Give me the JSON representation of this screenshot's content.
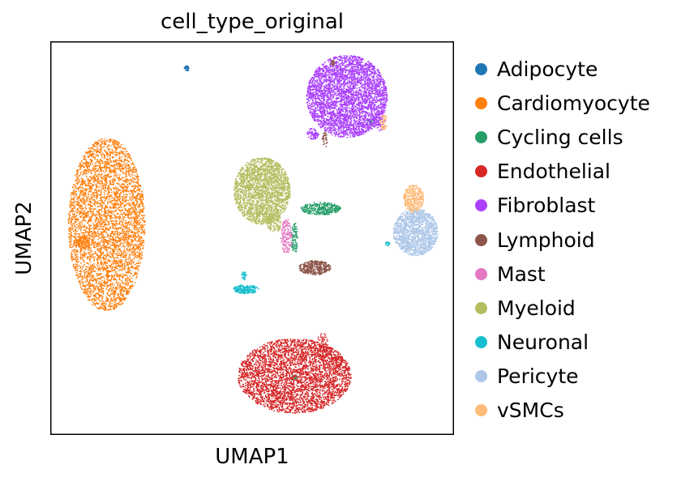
{
  "chart_data": {
    "type": "scatter",
    "title": "cell_type_original",
    "xlabel": "UMAP1",
    "ylabel": "UMAP2",
    "xticks": false,
    "yticks": false,
    "grid": false,
    "legend_placement": "right",
    "xlim": [
      0,
      100
    ],
    "ylim": [
      0,
      100
    ],
    "series": [
      {
        "name": "Adipocyte",
        "color": "#1f77b4",
        "clusters": [
          {
            "cx": 33.8,
            "cy": 93.1,
            "rx": 0.6,
            "ry": 0.7,
            "n": 40
          }
        ]
      },
      {
        "name": "Cardiomyocyte",
        "color": "#ff7f0e",
        "clusters": [
          {
            "cx": 14.0,
            "cy": 53.5,
            "rx": 9.5,
            "ry": 22.0,
            "n": 4200
          },
          {
            "cx": 7.8,
            "cy": 49.0,
            "rx": 2.0,
            "ry": 1.6,
            "n": 120
          }
        ]
      },
      {
        "name": "Cycling cells",
        "color": "#279e68",
        "clusters": [
          {
            "cx": 67.0,
            "cy": 57.5,
            "rx": 5.0,
            "ry": 1.6,
            "n": 320
          },
          {
            "cx": 60.5,
            "cy": 50.0,
            "rx": 0.8,
            "ry": 4.0,
            "n": 90
          },
          {
            "cx": 60.5,
            "cy": 14.5,
            "rx": 0.8,
            "ry": 0.7,
            "n": 30
          },
          {
            "cx": 79.5,
            "cy": 79.5,
            "rx": 0.9,
            "ry": 0.8,
            "n": 30
          }
        ]
      },
      {
        "name": "Endothelial",
        "color": "#d62728",
        "clusters": [
          {
            "cx": 60.5,
            "cy": 15.0,
            "rx": 14.0,
            "ry": 9.5,
            "n": 3600
          },
          {
            "cx": 67.5,
            "cy": 22.5,
            "rx": 1.5,
            "ry": 3.5,
            "n": 80
          },
          {
            "cx": 71.0,
            "cy": 19.0,
            "rx": 2.0,
            "ry": 1.5,
            "n": 60
          }
        ]
      },
      {
        "name": "Fibroblast",
        "color": "#aa40fc",
        "clusters": [
          {
            "cx": 73.5,
            "cy": 86.0,
            "rx": 10.0,
            "ry": 10.5,
            "n": 3600
          },
          {
            "cx": 65.0,
            "cy": 76.5,
            "rx": 1.5,
            "ry": 1.4,
            "n": 80
          },
          {
            "cx": 81.5,
            "cy": 79.5,
            "rx": 1.5,
            "ry": 2.5,
            "n": 80
          }
        ]
      },
      {
        "name": "Lymphoid",
        "color": "#8c564b",
        "clusters": [
          {
            "cx": 65.5,
            "cy": 42.5,
            "rx": 4.0,
            "ry": 1.8,
            "n": 380
          },
          {
            "cx": 68.0,
            "cy": 75.0,
            "rx": 0.7,
            "ry": 2.0,
            "n": 30
          },
          {
            "cx": 70.0,
            "cy": 94.5,
            "rx": 0.5,
            "ry": 0.8,
            "n": 20
          }
        ]
      },
      {
        "name": "Mast",
        "color": "#e377c2",
        "clusters": [
          {
            "cx": 58.5,
            "cy": 50.5,
            "rx": 1.4,
            "ry": 4.5,
            "n": 160
          }
        ]
      },
      {
        "name": "Myeloid",
        "color": "#b5bd61",
        "clusters": [
          {
            "cx": 52.5,
            "cy": 62.0,
            "rx": 7.0,
            "ry": 8.5,
            "n": 2200
          },
          {
            "cx": 55.5,
            "cy": 54.0,
            "rx": 1.8,
            "ry": 2.5,
            "n": 120
          }
        ]
      },
      {
        "name": "Neuronal",
        "color": "#17becf",
        "clusters": [
          {
            "cx": 48.5,
            "cy": 37.0,
            "rx": 3.2,
            "ry": 1.1,
            "n": 220
          },
          {
            "cx": 48.0,
            "cy": 40.5,
            "rx": 0.6,
            "ry": 1.2,
            "n": 30
          },
          {
            "cx": 83.5,
            "cy": 48.5,
            "rx": 0.6,
            "ry": 0.5,
            "n": 20
          }
        ]
      },
      {
        "name": "Pericyte",
        "color": "#aec7e8",
        "clusters": [
          {
            "cx": 90.5,
            "cy": 51.5,
            "rx": 5.5,
            "ry": 6.0,
            "n": 1400
          }
        ]
      },
      {
        "name": "vSMCs",
        "color": "#ffbb78",
        "clusters": [
          {
            "cx": 90.0,
            "cy": 60.0,
            "rx": 2.5,
            "ry": 3.5,
            "n": 360
          },
          {
            "cx": 82.5,
            "cy": 79.5,
            "rx": 1.0,
            "ry": 2.0,
            "n": 50
          }
        ]
      }
    ]
  }
}
